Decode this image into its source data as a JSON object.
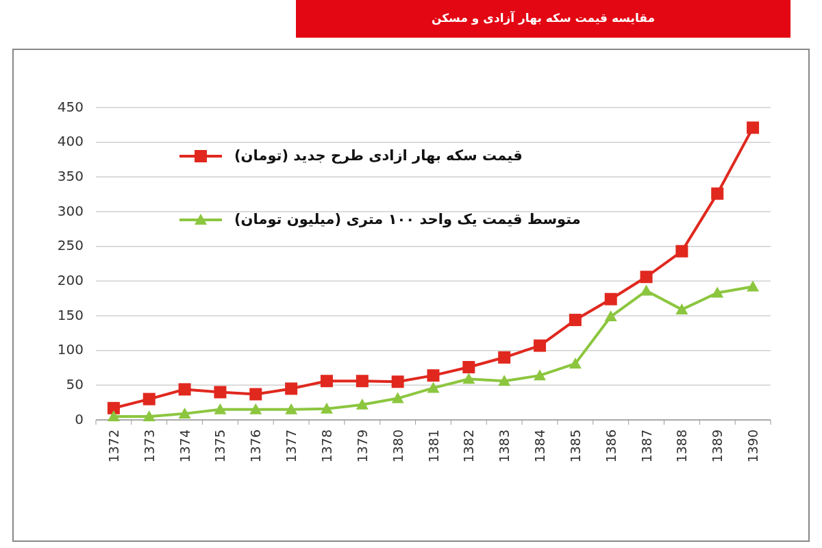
{
  "chart_data": {
    "type": "line",
    "title": "مقایسه قیمت سکه بهار آزادی و مسکن",
    "categories": [
      "1372",
      "1373",
      "1374",
      "1375",
      "1376",
      "1377",
      "1378",
      "1379",
      "1380",
      "1381",
      "1382",
      "1383",
      "1384",
      "1385",
      "1386",
      "1387",
      "1388",
      "1389",
      "1390"
    ],
    "series": [
      {
        "name": "قیمت سکه بهار ازادی طرح جدید (تومان)",
        "color": "#e0281e",
        "marker": "square",
        "values": [
          17,
          30,
          44,
          40,
          37,
          45,
          56,
          56,
          55,
          64,
          76,
          90,
          107,
          144,
          174,
          206,
          243,
          326,
          421
        ]
      },
      {
        "name": "متوسط قیمت یک واحد ۱۰۰ متری (میلیون تومان)",
        "color": "#8cc63f",
        "marker": "triangle",
        "values": [
          5,
          5,
          9,
          15,
          15,
          15,
          16,
          22,
          31,
          46,
          59,
          56,
          64,
          81,
          149,
          186,
          159,
          183,
          192
        ]
      }
    ],
    "ylim": [
      0,
      450
    ],
    "yticks": [
      0,
      50,
      100,
      150,
      200,
      250,
      300,
      350,
      400,
      450
    ],
    "grid": "y",
    "legend": "top left"
  }
}
